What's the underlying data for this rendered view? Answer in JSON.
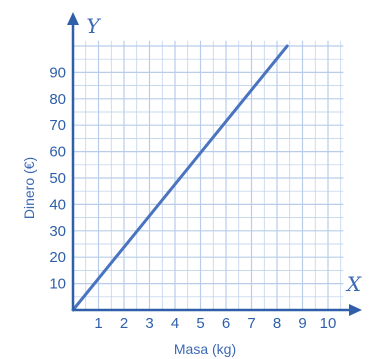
{
  "chart_data": {
    "type": "line",
    "xlabel": "Masa (kg)",
    "ylabel": "Dinero (€)",
    "x_axis_symbol": "X",
    "y_axis_symbol": "Y",
    "xlim": [
      0,
      10.6
    ],
    "ylim": [
      0,
      102
    ],
    "grid": true,
    "x_ticks": [
      "1",
      "2",
      "3",
      "4",
      "5",
      "6",
      "7",
      "8",
      "9",
      "10"
    ],
    "y_ticks": [
      "10",
      "20",
      "30",
      "40",
      "50",
      "60",
      "70",
      "80",
      "90"
    ],
    "series": [
      {
        "x": [
          0,
          8.4
        ],
        "y": [
          0,
          100
        ]
      }
    ],
    "colors": {
      "axis": "#2f5fa8",
      "grid": "#b9cdea",
      "line": "#4a74bf",
      "text": "#2f5fa8"
    }
  }
}
